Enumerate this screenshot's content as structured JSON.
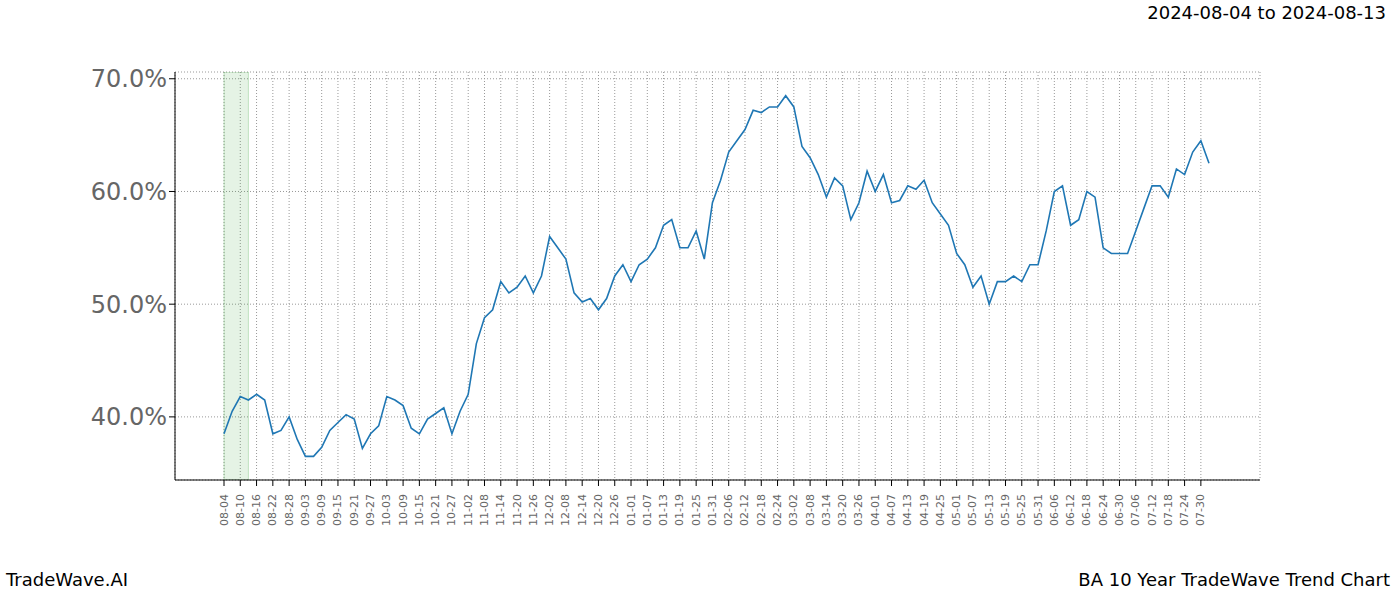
{
  "chart_data": {
    "type": "line",
    "title": "2024-08-04 to 2024-08-13",
    "footer_left": "TradeWave.AI",
    "footer_right": "BA 10 Year TradeWave Trend Chart",
    "categories": [
      "08-04",
      null,
      "08-10",
      null,
      "08-16",
      null,
      "08-22",
      null,
      "08-28",
      null,
      "09-03",
      null,
      "09-09",
      null,
      "09-15",
      null,
      "09-21",
      null,
      "09-27",
      null,
      "10-03",
      null,
      "10-09",
      null,
      "10-15",
      null,
      "10-21",
      null,
      "10-27",
      null,
      "11-02",
      null,
      "11-08",
      null,
      "11-14",
      null,
      "11-20",
      null,
      "11-26",
      null,
      "12-02",
      null,
      "12-08",
      null,
      "12-14",
      null,
      "12-20",
      null,
      "12-26",
      null,
      "01-01",
      null,
      "01-07",
      null,
      "01-13",
      null,
      "01-19",
      null,
      "01-25",
      null,
      "01-31",
      null,
      "02-06",
      null,
      "02-12",
      null,
      "02-18",
      null,
      "02-24",
      null,
      "03-02",
      null,
      "03-08",
      null,
      "03-14",
      null,
      "03-20",
      null,
      "03-26",
      null,
      "04-01",
      null,
      "04-07",
      null,
      "04-13",
      null,
      "04-19",
      null,
      "04-25",
      null,
      "05-01",
      null,
      "05-07",
      null,
      "05-13",
      null,
      "05-19",
      null,
      "05-25",
      null,
      "05-31",
      null,
      "06-06",
      null,
      "06-12",
      null,
      "06-18",
      null,
      "06-24",
      null,
      "06-30",
      null,
      "07-06",
      null,
      "07-12",
      null,
      "07-18",
      null,
      "07-24",
      null,
      "07-30",
      null
    ],
    "values": [
      38.5,
      40.5,
      41.8,
      41.5,
      42,
      41.5,
      38.5,
      38.8,
      40,
      38,
      36.5,
      36.5,
      37.3,
      38.8,
      39.5,
      40.2,
      39.8,
      37.2,
      38.5,
      39.2,
      41.8,
      41.5,
      41,
      39,
      38.5,
      39.8,
      40.3,
      40.8,
      38.5,
      40.5,
      42,
      46.5,
      48.8,
      49.5,
      52,
      51,
      51.5,
      52.5,
      51,
      52.5,
      56,
      55,
      54,
      51,
      50.2,
      50.5,
      49.5,
      50.5,
      52.5,
      53.5,
      52,
      53.5,
      54,
      55,
      57,
      57.5,
      55,
      55,
      56.5,
      54,
      59,
      61,
      63.5,
      64.5,
      65.5,
      67.2,
      67,
      67.5,
      67.5,
      68.5,
      67.5,
      64,
      63,
      61.5,
      59.5,
      61.2,
      60.5,
      57.5,
      59,
      61.8,
      60,
      61.5,
      59,
      59.2,
      60.5,
      60.2,
      61,
      59,
      58,
      57,
      54.5,
      53.5,
      51.5,
      52.5,
      50,
      52,
      52,
      52.5,
      52,
      53.5,
      53.5,
      56.5,
      60,
      60.5,
      57,
      57.5,
      60,
      59.5,
      55,
      54.5,
      54.5,
      54.5,
      56.5,
      58.5,
      60.5,
      60.5,
      59.5,
      62,
      61.5,
      63.5,
      64.5,
      62.5
    ],
    "color": "#1f77b4",
    "highlight": {
      "start": "08-04",
      "end": "08-13"
    },
    "ylim": [
      34.4,
      70.6
    ],
    "yticks": [
      {
        "value": 40,
        "label": "40.0%"
      },
      {
        "value": 50,
        "label": "50.0%"
      },
      {
        "value": 60,
        "label": "60.0%"
      },
      {
        "value": 70,
        "label": "70.0%"
      }
    ],
    "grid": true
  }
}
